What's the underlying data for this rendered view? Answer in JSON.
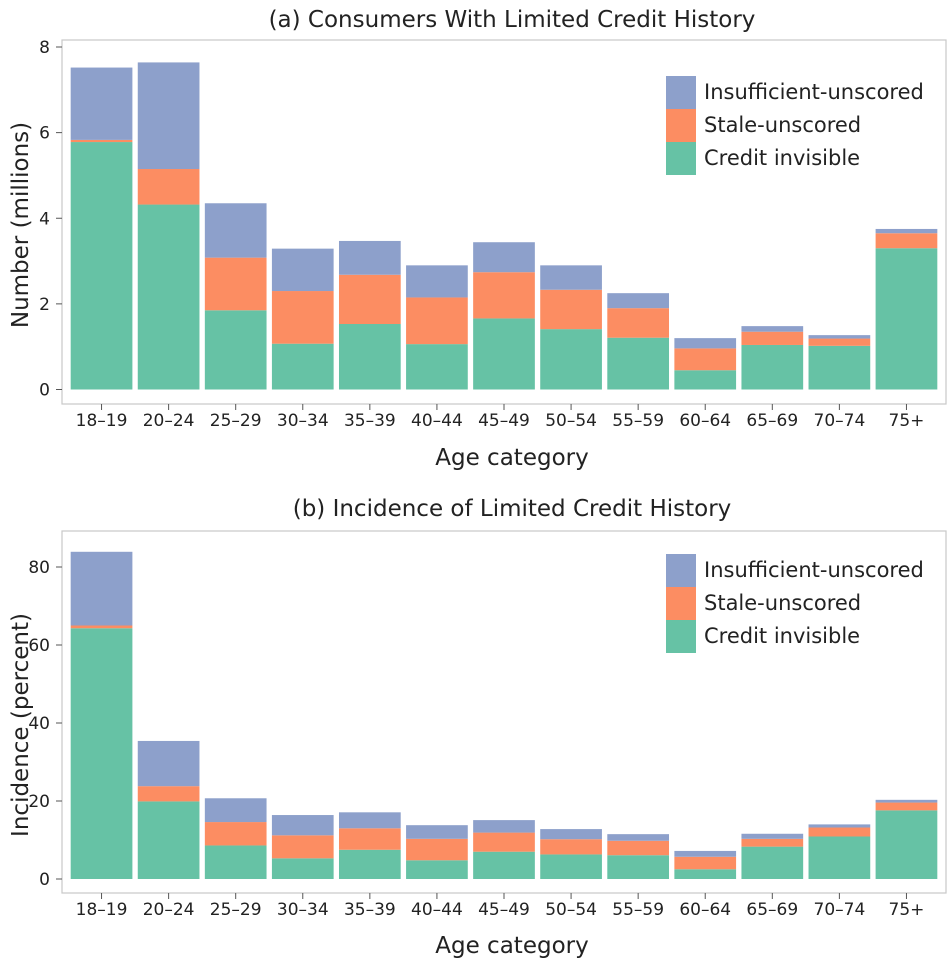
{
  "colors": {
    "Insufficient-unscored": "#8DA0CB",
    "Stale-unscored": "#FC8D62",
    "Credit invisible": "#66C2A5"
  },
  "chart_data": [
    {
      "type": "bar",
      "stacked": true,
      "title": "(a) Consumers With Limited Credit History",
      "xlabel": "Age category",
      "ylabel": "Number (millions)",
      "ylim": [
        0,
        8
      ],
      "yticks": [
        0,
        2,
        4,
        6,
        8
      ],
      "grid": false,
      "legend_position": "top-right",
      "categories": [
        "18–19",
        "20–24",
        "25–29",
        "30–34",
        "35–39",
        "40–44",
        "45–49",
        "50–54",
        "55–59",
        "60–64",
        "65–69",
        "70–74",
        "75+"
      ],
      "legend": [
        "Insufficient-unscored",
        "Stale-unscored",
        "Credit invisible"
      ],
      "series": [
        {
          "name": "Credit invisible",
          "values": [
            5.78,
            4.32,
            1.85,
            1.07,
            1.53,
            1.06,
            1.66,
            1.41,
            1.21,
            0.45,
            1.04,
            1.02,
            3.3
          ]
        },
        {
          "name": "Stale-unscored",
          "values": [
            0.05,
            0.83,
            1.23,
            1.23,
            1.15,
            1.09,
            1.08,
            0.92,
            0.69,
            0.51,
            0.31,
            0.17,
            0.35
          ]
        },
        {
          "name": "Insufficient-unscored",
          "values": [
            1.69,
            2.49,
            1.27,
            0.99,
            0.79,
            0.75,
            0.7,
            0.57,
            0.35,
            0.24,
            0.13,
            0.08,
            0.1
          ]
        }
      ]
    },
    {
      "type": "bar",
      "stacked": true,
      "title": "(b) Incidence of Limited Credit History",
      "xlabel": "Age category",
      "ylabel": "Incidence (percent)",
      "ylim": [
        0,
        87
      ],
      "yticks": [
        0,
        20,
        40,
        60,
        80
      ],
      "grid": false,
      "legend_position": "top-right",
      "categories": [
        "18–19",
        "20–24",
        "25–29",
        "30–34",
        "35–39",
        "40–44",
        "45–49",
        "50–54",
        "55–59",
        "60–64",
        "65–69",
        "70–74",
        "75+"
      ],
      "legend": [
        "Insufficient-unscored",
        "Stale-unscored",
        "Credit invisible"
      ],
      "series": [
        {
          "name": "Credit invisible",
          "values": [
            64.3,
            19.9,
            8.6,
            5.3,
            7.5,
            4.8,
            7.0,
            6.3,
            6.1,
            2.5,
            8.3,
            10.9,
            17.6
          ]
        },
        {
          "name": "Stale-unscored",
          "values": [
            0.7,
            3.9,
            6.0,
            5.9,
            5.5,
            5.5,
            4.9,
            3.9,
            3.7,
            3.2,
            2.0,
            2.3,
            2.0
          ]
        },
        {
          "name": "Insufficient-unscored",
          "values": [
            18.9,
            11.6,
            6.1,
            5.2,
            4.1,
            3.5,
            3.2,
            2.6,
            1.7,
            1.5,
            1.3,
            0.8,
            0.7
          ]
        }
      ]
    }
  ]
}
